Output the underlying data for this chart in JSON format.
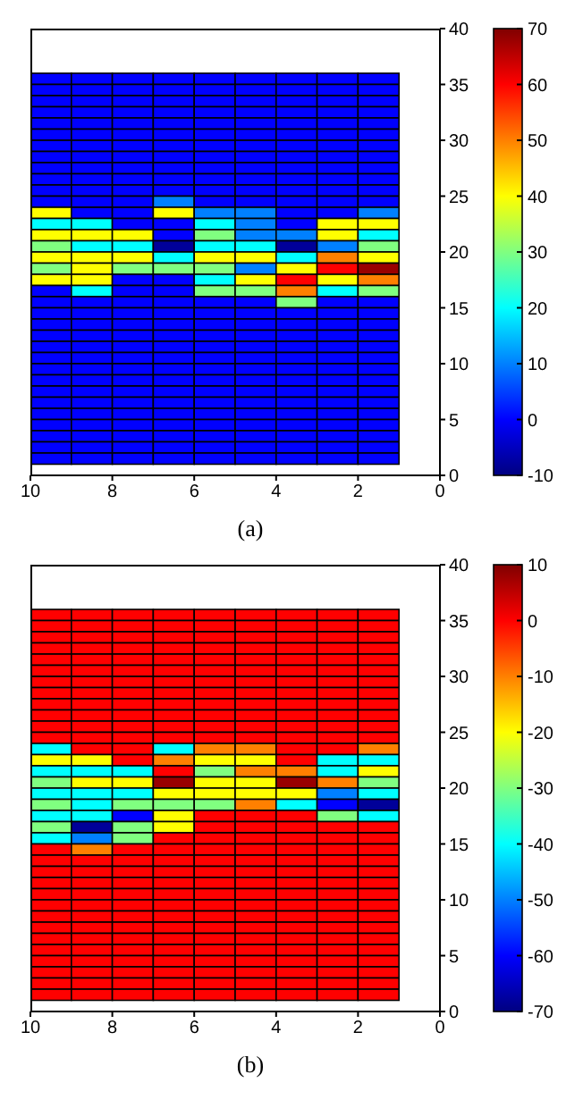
{
  "chart_data": [
    {
      "type": "heatmap",
      "annotations": [
        "(a)"
      ],
      "x": [
        9.5,
        8.5,
        7.5,
        6.5,
        5.5,
        4.5,
        3.5,
        2.5,
        1.5
      ],
      "y": [
        35.5,
        34.5,
        33.5,
        32.5,
        31.5,
        30.5,
        29.5,
        28.5,
        27.5,
        26.5,
        25.5,
        24.5,
        23.5,
        22.5,
        21.5,
        20.5,
        19.5,
        18.5,
        17.5,
        16.5,
        15.5,
        14.5,
        13.5,
        12.5,
        11.5,
        10.5,
        9.5,
        8.5,
        7.5,
        6.5,
        5.5,
        4.5,
        3.5,
        2.5,
        1.5
      ],
      "xlim": [
        10,
        0
      ],
      "xticks": [
        10,
        8,
        6,
        4,
        2,
        0
      ],
      "ylim": [
        0,
        40
      ],
      "yticks": [
        0,
        5,
        10,
        15,
        20,
        25,
        30,
        35,
        40
      ],
      "clim": [
        -10,
        70
      ],
      "cticks": [
        -10,
        0,
        10,
        20,
        30,
        40,
        50,
        60,
        70
      ],
      "cells": [
        [
          0,
          0,
          0,
          0,
          0,
          0,
          0,
          0,
          0
        ],
        [
          0,
          0,
          0,
          0,
          0,
          0,
          0,
          0,
          0
        ],
        [
          0,
          0,
          0,
          0,
          0,
          0,
          0,
          0,
          0
        ],
        [
          0,
          0,
          0,
          0,
          0,
          0,
          0,
          0,
          0
        ],
        [
          0,
          0,
          0,
          0,
          0,
          0,
          0,
          0,
          0
        ],
        [
          0,
          0,
          0,
          0,
          0,
          0,
          0,
          0,
          0
        ],
        [
          0,
          0,
          0,
          0,
          0,
          0,
          0,
          0,
          0
        ],
        [
          0,
          0,
          0,
          0,
          0,
          0,
          0,
          0,
          0
        ],
        [
          0,
          0,
          0,
          0,
          0,
          0,
          0,
          0,
          0
        ],
        [
          0,
          0,
          0,
          0,
          0,
          0,
          0,
          0,
          0
        ],
        [
          0,
          0,
          0,
          0,
          0,
          0,
          0,
          0,
          0
        ],
        [
          0,
          0,
          0,
          10,
          0,
          0,
          0,
          0,
          0
        ],
        [
          40,
          0,
          0,
          40,
          10,
          10,
          0,
          0,
          10
        ],
        [
          20,
          20,
          0,
          0,
          20,
          10,
          0,
          40,
          40
        ],
        [
          40,
          40,
          40,
          0,
          30,
          10,
          10,
          40,
          20
        ],
        [
          30,
          20,
          20,
          -8,
          20,
          20,
          -8,
          10,
          30
        ],
        [
          40,
          40,
          40,
          20,
          40,
          40,
          20,
          50,
          40
        ],
        [
          30,
          40,
          30,
          30,
          30,
          10,
          40,
          60,
          68
        ],
        [
          40,
          40,
          0,
          0,
          20,
          40,
          60,
          40,
          50
        ],
        [
          0,
          20,
          0,
          0,
          30,
          30,
          50,
          20,
          30
        ],
        [
          0,
          0,
          0,
          0,
          0,
          0,
          30,
          0,
          0
        ],
        [
          0,
          0,
          0,
          0,
          0,
          0,
          0,
          0,
          0
        ],
        [
          0,
          0,
          0,
          0,
          0,
          0,
          0,
          0,
          0
        ],
        [
          0,
          0,
          0,
          0,
          0,
          0,
          0,
          0,
          0
        ],
        [
          0,
          0,
          0,
          0,
          0,
          0,
          0,
          0,
          0
        ],
        [
          0,
          0,
          0,
          0,
          0,
          0,
          0,
          0,
          0
        ],
        [
          0,
          0,
          0,
          0,
          0,
          0,
          0,
          0,
          0
        ],
        [
          0,
          0,
          0,
          0,
          0,
          0,
          0,
          0,
          0
        ],
        [
          0,
          0,
          0,
          0,
          0,
          0,
          0,
          0,
          0
        ],
        [
          0,
          0,
          0,
          0,
          0,
          0,
          0,
          0,
          0
        ],
        [
          0,
          0,
          0,
          0,
          0,
          0,
          0,
          0,
          0
        ],
        [
          0,
          0,
          0,
          0,
          0,
          0,
          0,
          0,
          0
        ],
        [
          0,
          0,
          0,
          0,
          0,
          0,
          0,
          0,
          0
        ],
        [
          0,
          0,
          0,
          0,
          0,
          0,
          0,
          0,
          0
        ],
        [
          0,
          0,
          0,
          0,
          0,
          0,
          0,
          0,
          0
        ]
      ]
    },
    {
      "type": "heatmap",
      "annotations": [
        "(b)"
      ],
      "x": [
        9.5,
        8.5,
        7.5,
        6.5,
        5.5,
        4.5,
        3.5,
        2.5,
        1.5
      ],
      "y": [
        35.5,
        34.5,
        33.5,
        32.5,
        31.5,
        30.5,
        29.5,
        28.5,
        27.5,
        26.5,
        25.5,
        24.5,
        23.5,
        22.5,
        21.5,
        20.5,
        19.5,
        18.5,
        17.5,
        16.5,
        15.5,
        14.5,
        13.5,
        12.5,
        11.5,
        10.5,
        9.5,
        8.5,
        7.5,
        6.5,
        5.5,
        4.5,
        3.5,
        2.5,
        1.5
      ],
      "xlim": [
        10,
        0
      ],
      "xticks": [
        10,
        8,
        6,
        4,
        2,
        0
      ],
      "ylim": [
        0,
        40
      ],
      "yticks": [
        0,
        5,
        10,
        15,
        20,
        25,
        30,
        35,
        40
      ],
      "clim": [
        -70,
        10
      ],
      "cticks": [
        -70,
        -60,
        -50,
        -40,
        -30,
        -20,
        -10,
        0,
        10
      ],
      "cells": [
        [
          0,
          0,
          0,
          0,
          0,
          0,
          0,
          0,
          0
        ],
        [
          0,
          0,
          0,
          0,
          0,
          0,
          0,
          0,
          0
        ],
        [
          0,
          0,
          0,
          0,
          0,
          0,
          0,
          0,
          0
        ],
        [
          0,
          0,
          0,
          0,
          0,
          0,
          0,
          0,
          0
        ],
        [
          0,
          0,
          0,
          0,
          0,
          0,
          0,
          0,
          0
        ],
        [
          0,
          0,
          0,
          0,
          0,
          0,
          0,
          0,
          0
        ],
        [
          0,
          0,
          0,
          0,
          0,
          0,
          0,
          0,
          0
        ],
        [
          0,
          0,
          0,
          0,
          0,
          0,
          0,
          0,
          0
        ],
        [
          0,
          0,
          0,
          0,
          0,
          0,
          0,
          0,
          0
        ],
        [
          0,
          0,
          0,
          0,
          0,
          0,
          0,
          0,
          0
        ],
        [
          0,
          0,
          0,
          0,
          0,
          0,
          0,
          0,
          0
        ],
        [
          0,
          0,
          0,
          0,
          0,
          0,
          0,
          0,
          0
        ],
        [
          -40,
          0,
          0,
          -40,
          -10,
          -10,
          0,
          0,
          -10
        ],
        [
          -20,
          -20,
          0,
          -10,
          -20,
          -20,
          0,
          -40,
          -40
        ],
        [
          -40,
          -40,
          -40,
          0,
          -30,
          -10,
          -10,
          -40,
          -20
        ],
        [
          -30,
          -20,
          -20,
          8,
          -20,
          -20,
          8,
          -10,
          -30
        ],
        [
          -40,
          -40,
          -40,
          -20,
          -20,
          -20,
          -20,
          -50,
          -40
        ],
        [
          -30,
          -40,
          -30,
          -30,
          -30,
          -10,
          -40,
          -60,
          -68
        ],
        [
          -40,
          -40,
          -60,
          -20,
          0,
          0,
          0,
          -30,
          -40
        ],
        [
          -30,
          -68,
          -30,
          -20,
          0,
          0,
          0,
          0,
          0
        ],
        [
          -40,
          -50,
          -30,
          0,
          0,
          0,
          0,
          0,
          0
        ],
        [
          0,
          -10,
          0,
          0,
          0,
          0,
          0,
          0,
          0
        ],
        [
          0,
          0,
          0,
          0,
          0,
          0,
          0,
          0,
          0
        ],
        [
          0,
          0,
          0,
          0,
          0,
          0,
          0,
          0,
          0
        ],
        [
          0,
          0,
          0,
          0,
          0,
          0,
          0,
          0,
          0
        ],
        [
          0,
          0,
          0,
          0,
          0,
          0,
          0,
          0,
          0
        ],
        [
          0,
          0,
          0,
          0,
          0,
          0,
          0,
          0,
          0
        ],
        [
          0,
          0,
          0,
          0,
          0,
          0,
          0,
          0,
          0
        ],
        [
          0,
          0,
          0,
          0,
          0,
          0,
          0,
          0,
          0
        ],
        [
          0,
          0,
          0,
          0,
          0,
          0,
          0,
          0,
          0
        ],
        [
          0,
          0,
          0,
          0,
          0,
          0,
          0,
          0,
          0
        ],
        [
          0,
          0,
          0,
          0,
          0,
          0,
          0,
          0,
          0
        ],
        [
          0,
          0,
          0,
          0,
          0,
          0,
          0,
          0,
          0
        ],
        [
          0,
          0,
          0,
          0,
          0,
          0,
          0,
          0,
          0
        ],
        [
          0,
          0,
          0,
          0,
          0,
          0,
          0,
          0,
          0
        ]
      ]
    }
  ]
}
